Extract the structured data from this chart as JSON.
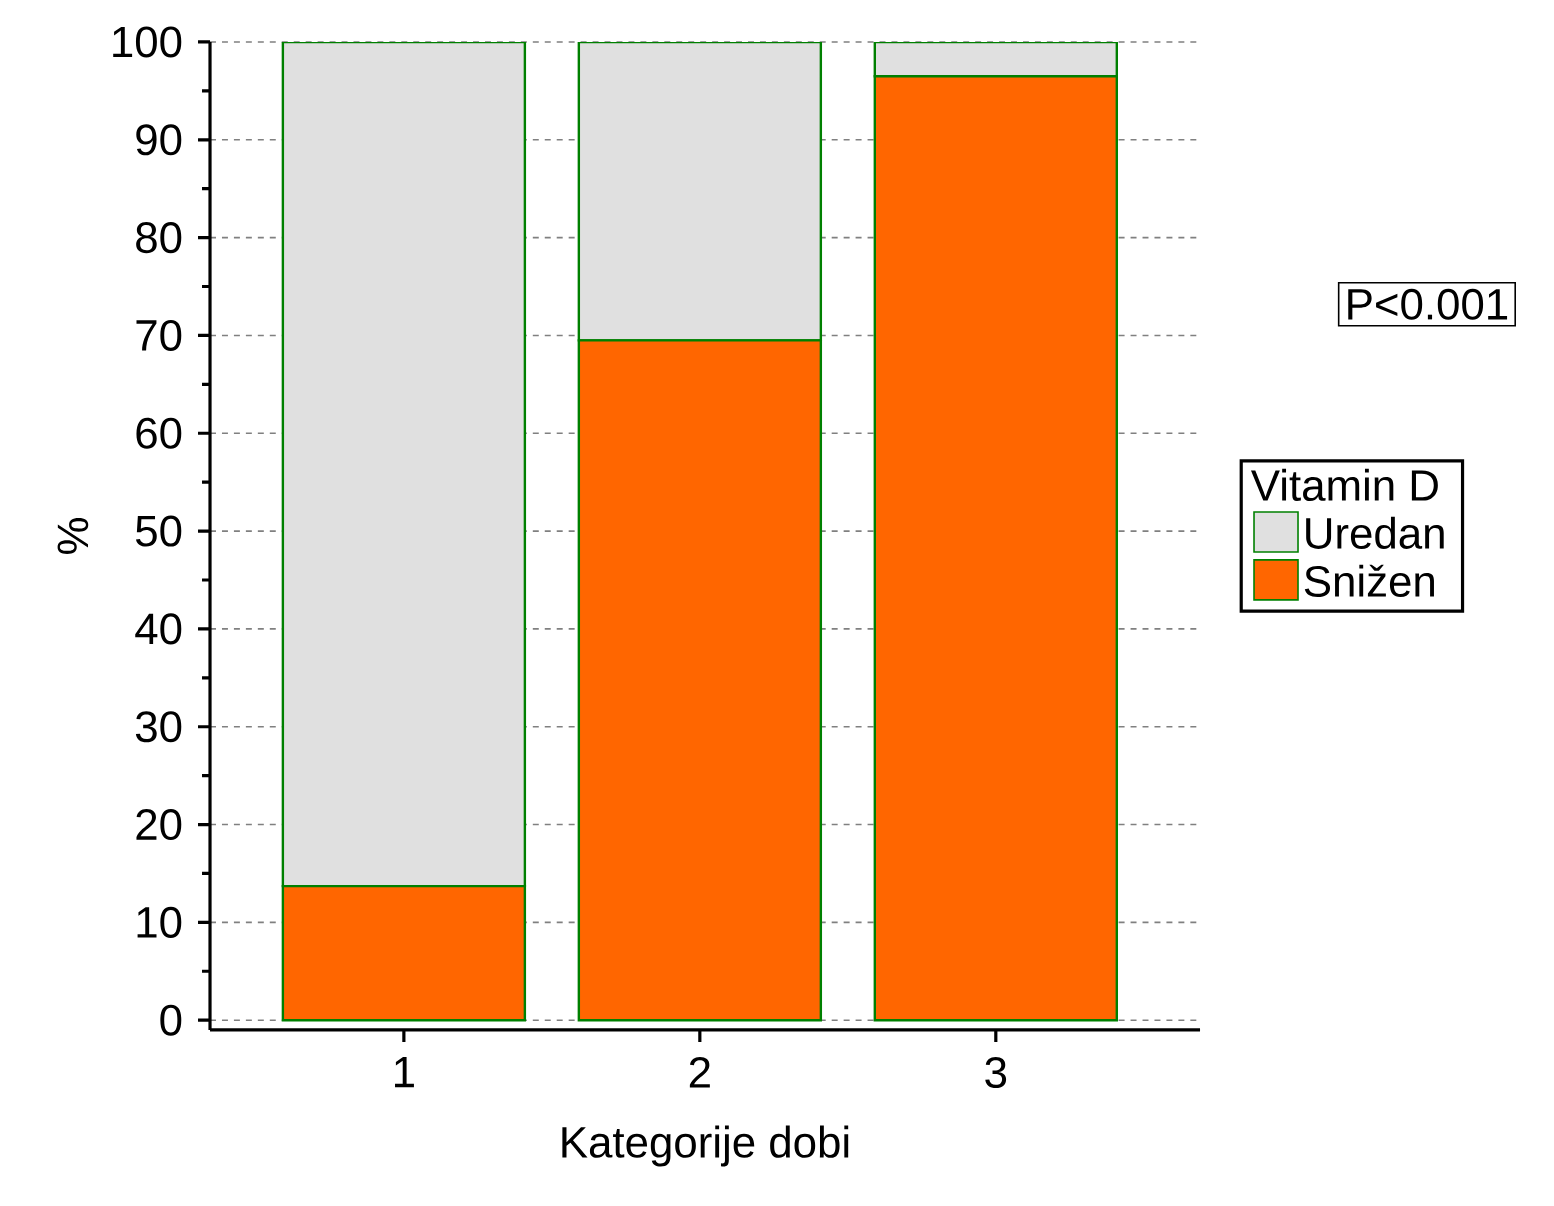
{
  "chart_data": {
    "type": "bar",
    "stacked": true,
    "xlabel": "Kategorije dobi",
    "ylabel": "%",
    "legend_title": "Vitamin D",
    "legend": "right",
    "categories": [
      "1",
      "2",
      "3"
    ],
    "series": [
      {
        "name": "Snižen",
        "color": "#ff6600",
        "values": [
          13.7,
          69.5,
          96.5
        ]
      },
      {
        "name": "Uredan",
        "color": "#e0e0e0",
        "values": [
          86.3,
          30.5,
          3.5
        ]
      }
    ],
    "ylim": [
      -1,
      100
    ],
    "yticks": [
      0,
      10,
      20,
      30,
      40,
      50,
      60,
      70,
      80,
      90,
      100
    ],
    "grid": "y",
    "annotations": [
      "P<0.001"
    ]
  }
}
